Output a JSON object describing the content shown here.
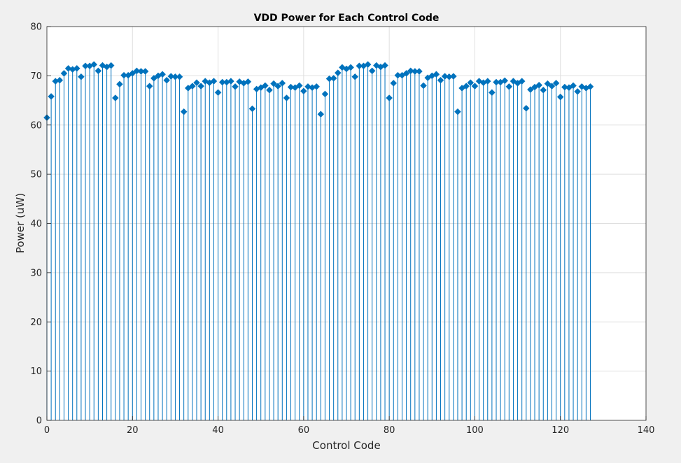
{
  "chart_data": {
    "type": "stem",
    "title": "VDD Power for Each Control Code",
    "xlabel": "Control Code",
    "ylabel": "Power (uW)",
    "xlim": [
      0,
      140
    ],
    "ylim": [
      0,
      80
    ],
    "xticks": [
      0,
      20,
      40,
      60,
      80,
      100,
      120,
      140
    ],
    "yticks": [
      0,
      10,
      20,
      30,
      40,
      50,
      60,
      70,
      80
    ],
    "grid": true,
    "color": "#0072BD",
    "marker": "diamond",
    "x": [
      0,
      1,
      2,
      3,
      4,
      5,
      6,
      7,
      8,
      9,
      10,
      11,
      12,
      13,
      14,
      15,
      16,
      17,
      18,
      19,
      20,
      21,
      22,
      23,
      24,
      25,
      26,
      27,
      28,
      29,
      30,
      31,
      32,
      33,
      34,
      35,
      36,
      37,
      38,
      39,
      40,
      41,
      42,
      43,
      44,
      45,
      46,
      47,
      48,
      49,
      50,
      51,
      52,
      53,
      54,
      55,
      56,
      57,
      58,
      59,
      60,
      61,
      62,
      63,
      64,
      65,
      66,
      67,
      68,
      69,
      70,
      71,
      72,
      73,
      74,
      75,
      76,
      77,
      78,
      79,
      80,
      81,
      82,
      83,
      84,
      85,
      86,
      87,
      88,
      89,
      90,
      91,
      92,
      93,
      94,
      95,
      96,
      97,
      98,
      99,
      100,
      101,
      102,
      103,
      104,
      105,
      106,
      107,
      108,
      109,
      110,
      111,
      112,
      113,
      114,
      115,
      116,
      117,
      118,
      119,
      120,
      121,
      122,
      123,
      124,
      125,
      126,
      127
    ],
    "values": [
      61.5,
      65.8,
      68.9,
      69.1,
      70.5,
      71.5,
      71.3,
      71.5,
      69.8,
      72.0,
      72.0,
      72.3,
      71.0,
      72.1,
      71.8,
      72.1,
      65.5,
      68.3,
      70.1,
      70.1,
      70.5,
      71.0,
      70.9,
      70.9,
      67.9,
      69.5,
      70.0,
      70.3,
      69.1,
      69.9,
      69.8,
      69.8,
      62.7,
      67.5,
      67.9,
      68.6,
      67.9,
      68.9,
      68.6,
      68.9,
      66.6,
      68.7,
      68.7,
      68.9,
      67.8,
      68.8,
      68.5,
      68.8,
      63.3,
      67.3,
      67.6,
      68.0,
      67.1,
      68.4,
      67.9,
      68.5,
      65.5,
      67.7,
      67.6,
      68.0,
      66.9,
      67.8,
      67.6,
      67.8,
      62.2,
      66.3,
      69.4,
      69.5,
      70.6,
      71.7,
      71.4,
      71.7,
      69.8,
      72.0,
      72.0,
      72.3,
      71.0,
      72.1,
      71.8,
      72.1,
      65.5,
      68.5,
      70.1,
      70.1,
      70.5,
      71.0,
      70.9,
      70.9,
      68.0,
      69.6,
      70.0,
      70.3,
      69.1,
      69.9,
      69.8,
      69.9,
      62.7,
      67.5,
      67.9,
      68.6,
      67.9,
      68.9,
      68.6,
      68.9,
      66.6,
      68.7,
      68.7,
      69.0,
      67.8,
      68.9,
      68.5,
      68.9,
      63.4,
      67.2,
      67.7,
      68.1,
      67.1,
      68.4,
      67.9,
      68.5,
      65.7,
      67.7,
      67.6,
      68.0,
      66.8,
      67.8,
      67.5,
      67.8
    ]
  }
}
